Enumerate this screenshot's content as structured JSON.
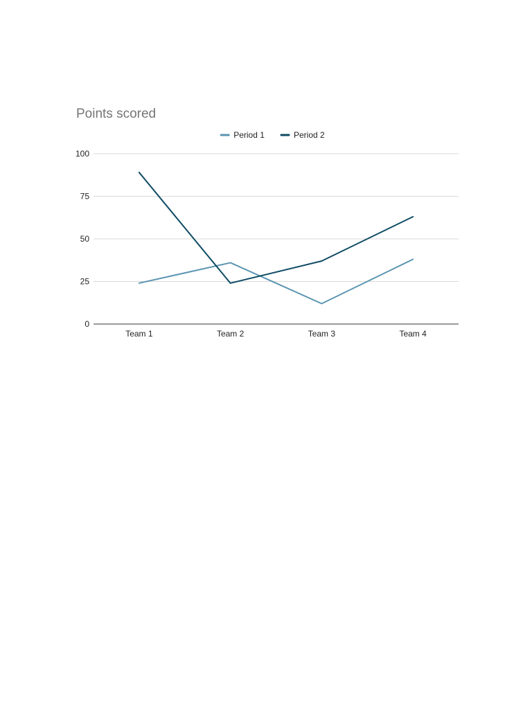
{
  "chart_data": {
    "type": "line",
    "title": "Points scored",
    "categories": [
      "Team 1",
      "Team 2",
      "Team 3",
      "Team 4"
    ],
    "series": [
      {
        "name": "Period 1",
        "values": [
          24,
          36,
          12,
          38
        ],
        "color": "#5b95b1"
      },
      {
        "name": "Period 2",
        "values": [
          89,
          24,
          37,
          63
        ],
        "color": "#0d4a63"
      }
    ],
    "ylim": [
      0,
      100
    ],
    "yticks": [
      0,
      25,
      50,
      75,
      100
    ],
    "xlabel": "",
    "ylabel": "",
    "grid": true,
    "legend_position": "top"
  }
}
